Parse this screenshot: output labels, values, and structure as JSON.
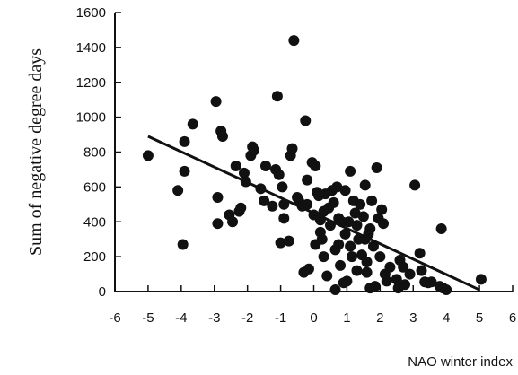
{
  "chart_data": {
    "type": "scatter",
    "xlabel": "NAO winter index",
    "ylabel": "Sum of negative degree days",
    "xlim": [
      -6,
      6
    ],
    "ylim": [
      0,
      1600
    ],
    "xticks": [
      -6,
      -5,
      -4,
      -3,
      -2,
      -1,
      0,
      1,
      2,
      3,
      4,
      5,
      6
    ],
    "yticks": [
      0,
      200,
      400,
      600,
      800,
      1000,
      1200,
      1400,
      1600
    ],
    "xtick_labels": [
      "-6",
      "-5",
      "-4",
      "-3",
      "-2",
      "-1",
      "0",
      "1",
      "2",
      "3",
      "4",
      "5",
      "6"
    ],
    "ytick_labels": [
      "0",
      "200",
      "400",
      "600",
      "800",
      "1000",
      "1200",
      "1400",
      "1600"
    ],
    "grid": false,
    "colors": {
      "points": "#111111",
      "trend": "#111111"
    },
    "trendline": {
      "x": [
        -5,
        5
      ],
      "y": [
        890,
        10
      ]
    },
    "points": [
      [
        -5.0,
        780
      ],
      [
        -4.1,
        580
      ],
      [
        -3.95,
        270
      ],
      [
        -3.9,
        860
      ],
      [
        -3.9,
        690
      ],
      [
        -3.65,
        960
      ],
      [
        -2.95,
        1090
      ],
      [
        -2.9,
        540
      ],
      [
        -2.9,
        390
      ],
      [
        -2.8,
        920
      ],
      [
        -2.75,
        890
      ],
      [
        -2.55,
        440
      ],
      [
        -2.45,
        400
      ],
      [
        -2.35,
        720
      ],
      [
        -2.25,
        460
      ],
      [
        -2.2,
        480
      ],
      [
        -2.1,
        680
      ],
      [
        -2.05,
        630
      ],
      [
        -1.9,
        780
      ],
      [
        -1.85,
        830
      ],
      [
        -1.8,
        810
      ],
      [
        -1.6,
        590
      ],
      [
        -1.5,
        520
      ],
      [
        -1.45,
        720
      ],
      [
        -1.25,
        490
      ],
      [
        -1.15,
        700
      ],
      [
        -1.1,
        1120
      ],
      [
        -1.05,
        670
      ],
      [
        -1.0,
        280
      ],
      [
        -0.95,
        600
      ],
      [
        -0.9,
        500
      ],
      [
        -0.9,
        420
      ],
      [
        -0.75,
        290
      ],
      [
        -0.7,
        780
      ],
      [
        -0.65,
        820
      ],
      [
        -0.6,
        1440
      ],
      [
        -0.5,
        540
      ],
      [
        -0.45,
        520
      ],
      [
        -0.35,
        490
      ],
      [
        -0.3,
        110
      ],
      [
        -0.25,
        980
      ],
      [
        -0.2,
        640
      ],
      [
        -0.2,
        500
      ],
      [
        -0.15,
        130
      ],
      [
        -0.05,
        740
      ],
      [
        0.0,
        440
      ],
      [
        0.05,
        720
      ],
      [
        0.05,
        270
      ],
      [
        0.1,
        570
      ],
      [
        0.15,
        550
      ],
      [
        0.2,
        410
      ],
      [
        0.2,
        340
      ],
      [
        0.25,
        300
      ],
      [
        0.3,
        460
      ],
      [
        0.3,
        200
      ],
      [
        0.35,
        560
      ],
      [
        0.4,
        90
      ],
      [
        0.45,
        480
      ],
      [
        0.5,
        380
      ],
      [
        0.55,
        580
      ],
      [
        0.6,
        510
      ],
      [
        0.65,
        10
      ],
      [
        0.65,
        240
      ],
      [
        0.7,
        600
      ],
      [
        0.75,
        420
      ],
      [
        0.75,
        270
      ],
      [
        0.8,
        150
      ],
      [
        0.85,
        400
      ],
      [
        0.9,
        50
      ],
      [
        0.95,
        580
      ],
      [
        0.95,
        330
      ],
      [
        1.0,
        60
      ],
      [
        1.05,
        400
      ],
      [
        1.1,
        690
      ],
      [
        1.1,
        260
      ],
      [
        1.15,
        200
      ],
      [
        1.2,
        520
      ],
      [
        1.25,
        450
      ],
      [
        1.3,
        380
      ],
      [
        1.3,
        120
      ],
      [
        1.35,
        300
      ],
      [
        1.4,
        500
      ],
      [
        1.45,
        210
      ],
      [
        1.5,
        430
      ],
      [
        1.55,
        610
      ],
      [
        1.55,
        300
      ],
      [
        1.6,
        170
      ],
      [
        1.6,
        110
      ],
      [
        1.65,
        330
      ],
      [
        1.7,
        360
      ],
      [
        1.7,
        20
      ],
      [
        1.75,
        520
      ],
      [
        1.8,
        260
      ],
      [
        1.85,
        30
      ],
      [
        1.9,
        710
      ],
      [
        1.95,
        420
      ],
      [
        2.0,
        200
      ],
      [
        2.05,
        470
      ],
      [
        2.1,
        390
      ],
      [
        2.15,
        100
      ],
      [
        2.2,
        60
      ],
      [
        2.3,
        140
      ],
      [
        2.5,
        70
      ],
      [
        2.55,
        20
      ],
      [
        2.6,
        180
      ],
      [
        2.7,
        140
      ],
      [
        2.75,
        40
      ],
      [
        2.9,
        100
      ],
      [
        3.05,
        610
      ],
      [
        3.2,
        220
      ],
      [
        3.25,
        120
      ],
      [
        3.35,
        55
      ],
      [
        3.45,
        50
      ],
      [
        3.55,
        55
      ],
      [
        3.8,
        30
      ],
      [
        3.85,
        360
      ],
      [
        3.9,
        20
      ],
      [
        4.0,
        10
      ],
      [
        5.05,
        70
      ]
    ]
  }
}
